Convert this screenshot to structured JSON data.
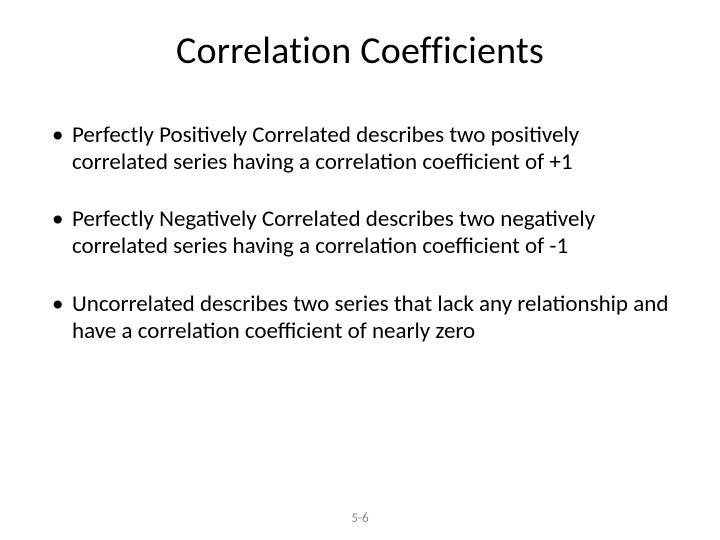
{
  "slide": {
    "title": "Correlation Coefficients",
    "bullets": [
      "Perfectly Positively Correlated describes two positively correlated series having a correlation coefficient of  +1",
      "Perfectly Negatively Correlated describes two negatively correlated series having a correlation coefficient of -1",
      "Uncorrelated describes two series that lack any relationship and have a correlation coefficient of nearly zero"
    ],
    "page_number": "5-6"
  },
  "styling": {
    "background_color": "#ffffff",
    "title_fontsize": 38,
    "title_color": "#000000",
    "body_fontsize": 23,
    "body_color": "#000000",
    "page_number_color": "#8a8a8a",
    "page_number_fontsize": 13,
    "font_family": "Calibri"
  }
}
